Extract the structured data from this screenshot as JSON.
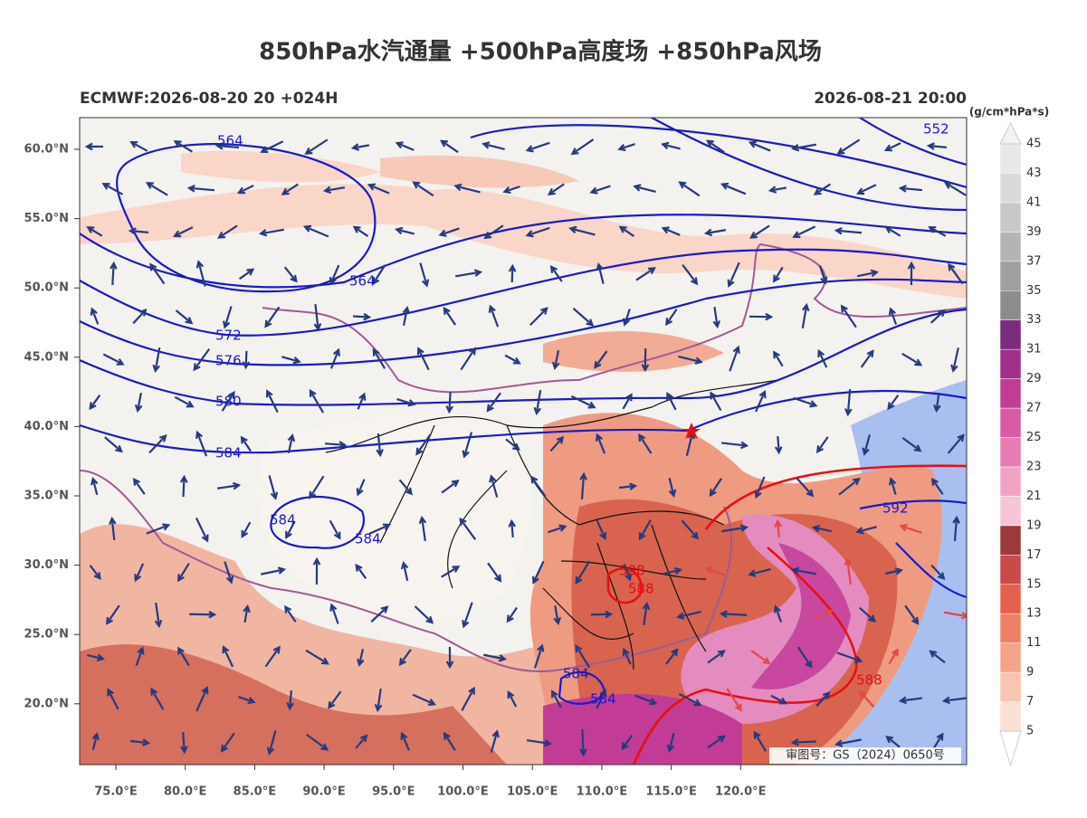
{
  "title": "850hPa水汽通量 +500hPa高度场 +850hPa风场",
  "subtitle_left": "ECMWF:2026-08-20 20 +024H",
  "subtitle_right": "2026-08-21 20:00",
  "lat_labels": [
    "60.0°N",
    "55.0°N",
    "50.0°N",
    "45.0°N",
    "40.0°N",
    "35.0°N",
    "30.0°N",
    "25.0°N",
    "20.0°N"
  ],
  "lon_labels": [
    "75.0°E",
    "80.0°E",
    "85.0°E",
    "90.0°E",
    "95.0°E",
    "100.0°E",
    "105.0°E",
    "110.0°E",
    "115.0°E",
    "120.0°E"
  ],
  "contour_labels": [
    "564",
    "552",
    "564",
    "572",
    "576",
    "580",
    "584",
    "584",
    "584",
    "592",
    "584",
    "584",
    "588",
    "588",
    "588"
  ],
  "review_number": "审图号：GS（2024）0650号",
  "colorbar": {
    "unit": "(g/cm*hPa*s)",
    "levels": [
      5,
      7,
      9,
      11,
      13,
      15,
      17,
      19,
      21,
      23,
      25,
      27,
      29,
      31,
      33,
      35,
      37,
      39,
      41,
      43,
      45
    ],
    "colors": [
      "#fbe0d6",
      "#f9c4b0",
      "#f5a48a",
      "#ef8068",
      "#e5604f",
      "#c94a4a",
      "#9c3a3e",
      "#f6c6d6",
      "#f0a4c4",
      "#e77cb3",
      "#d95aa4",
      "#c23c96",
      "#a02f8c",
      "#7a2c7e",
      "#8c8c8c",
      "#a0a0a0",
      "#b4b4b4",
      "#c8c8c8",
      "#dadada",
      "#e8e8e8"
    ]
  }
}
